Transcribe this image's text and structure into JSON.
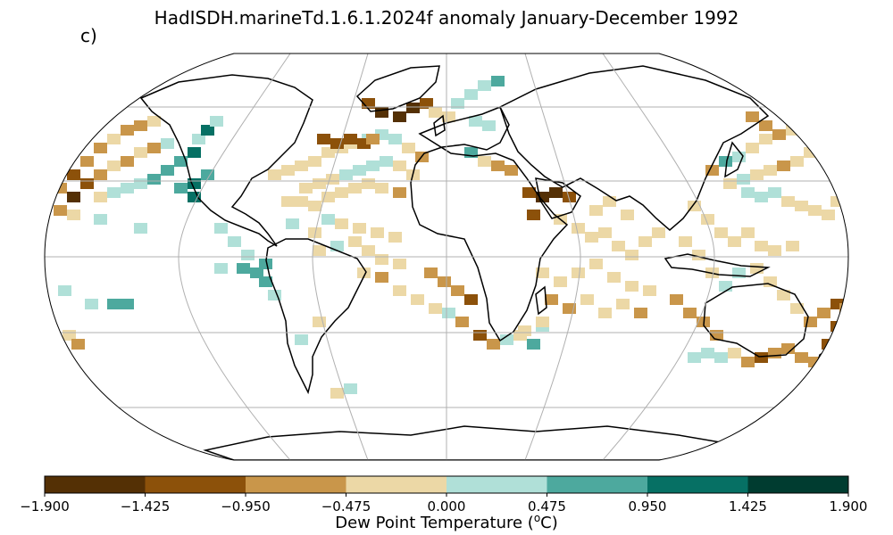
{
  "figure": {
    "title": "HadISDH.marineTd.1.6.1.2024f anomaly January-December 1992",
    "panel_label": "c)"
  },
  "colorbar": {
    "label_main": "Dew Point Temperature (",
    "label_sup": "o",
    "label_end": "C)",
    "ticks": [
      "−1.900",
      "−1.425",
      "−0.950",
      "−0.475",
      "0.000",
      "0.475",
      "0.950",
      "1.425",
      "1.900"
    ],
    "colors": [
      "#543005",
      "#8c510a",
      "#c9964a",
      "#ecd8a6",
      "#b0e0d8",
      "#4da99e",
      "#067064",
      "#003c30"
    ],
    "range": [
      -1.9,
      1.9
    ]
  },
  "map_data": {
    "projection": "Robinson",
    "gridlines": true,
    "coastlines": true,
    "variable": "Dew Point Temperature anomaly",
    "units": "oC"
  }
}
